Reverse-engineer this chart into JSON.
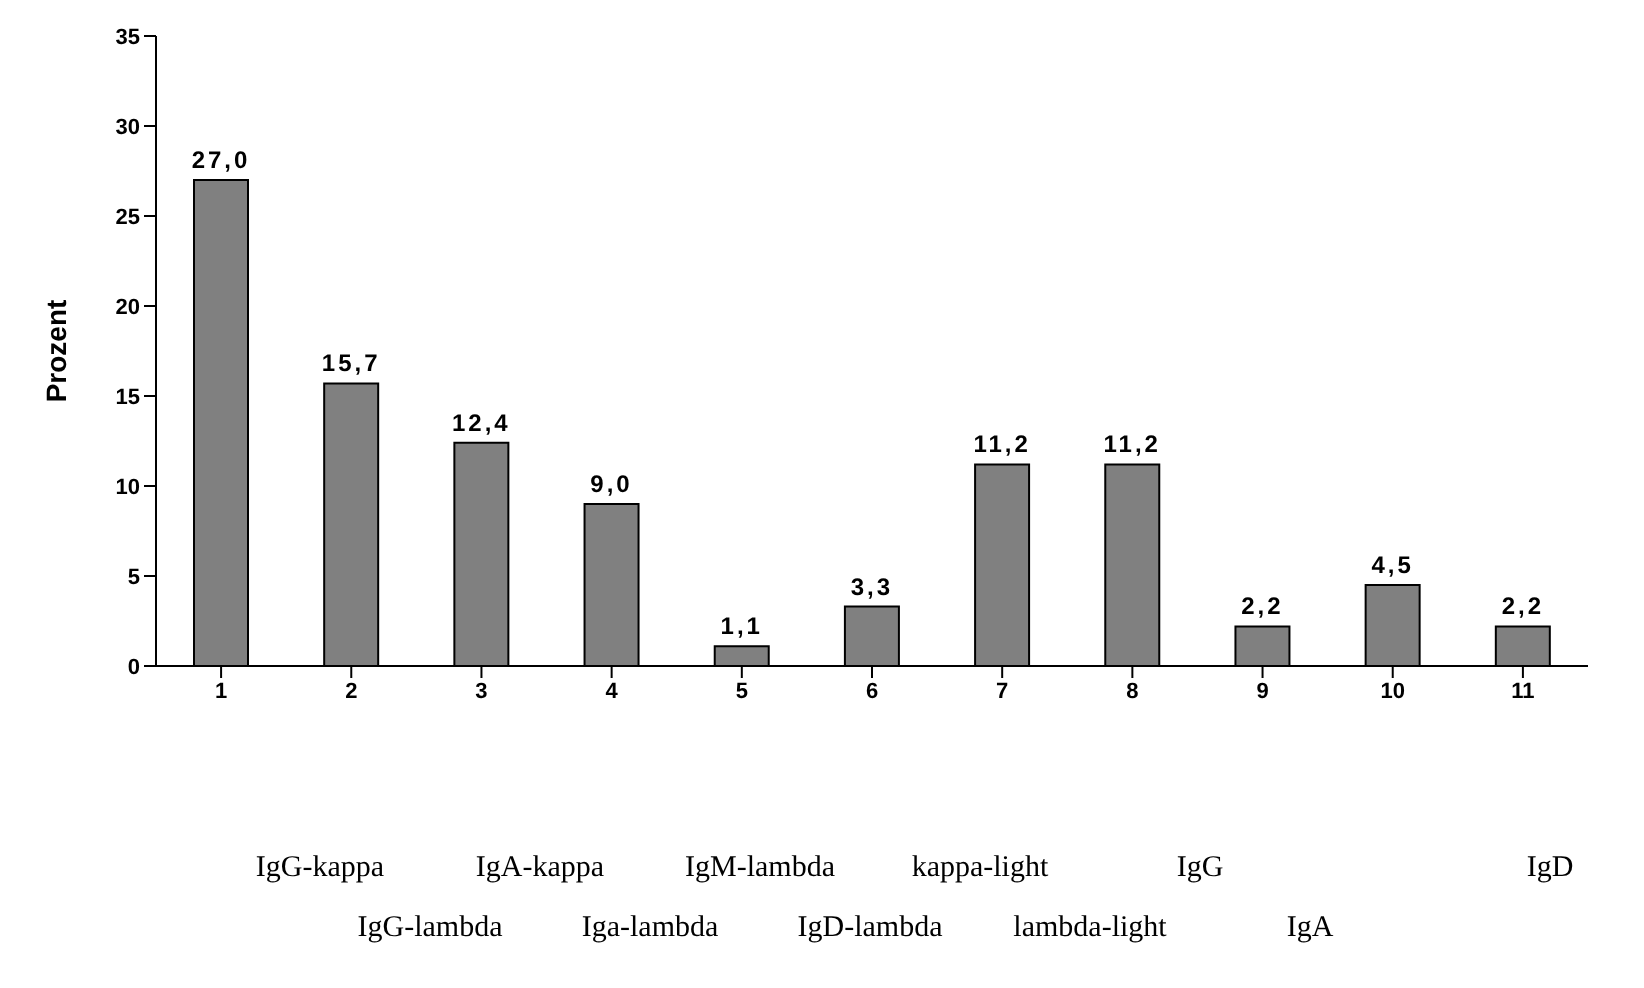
{
  "chart_data": {
    "type": "bar",
    "ylabel": "Prozent",
    "categories": [
      "1",
      "2",
      "3",
      "4",
      "5",
      "6",
      "7",
      "8",
      "9",
      "10",
      "11"
    ],
    "values": [
      27.0,
      15.7,
      12.4,
      9.0,
      1.1,
      3.3,
      11.2,
      11.2,
      2.2,
      4.5,
      2.2
    ],
    "value_labels": [
      "27,0",
      "15,7",
      "12,4",
      "9,0",
      "1,1",
      "3,3",
      "11,2",
      "11,2",
      "2,2",
      "4,5",
      "2,2"
    ],
    "color": "#808080",
    "ylim": [
      0,
      35
    ],
    "yticks": [
      0,
      5,
      10,
      15,
      20,
      25,
      30,
      35
    ],
    "grid": false,
    "legend": false,
    "annotations": [
      "IgG-kappa",
      "IgG-lambda",
      "IgA-kappa",
      "Iga-lambda",
      "IgM-lambda",
      "IgD-lambda",
      "kappa-light",
      "lambda-light",
      "IgG",
      "IgA",
      "IgD"
    ]
  }
}
